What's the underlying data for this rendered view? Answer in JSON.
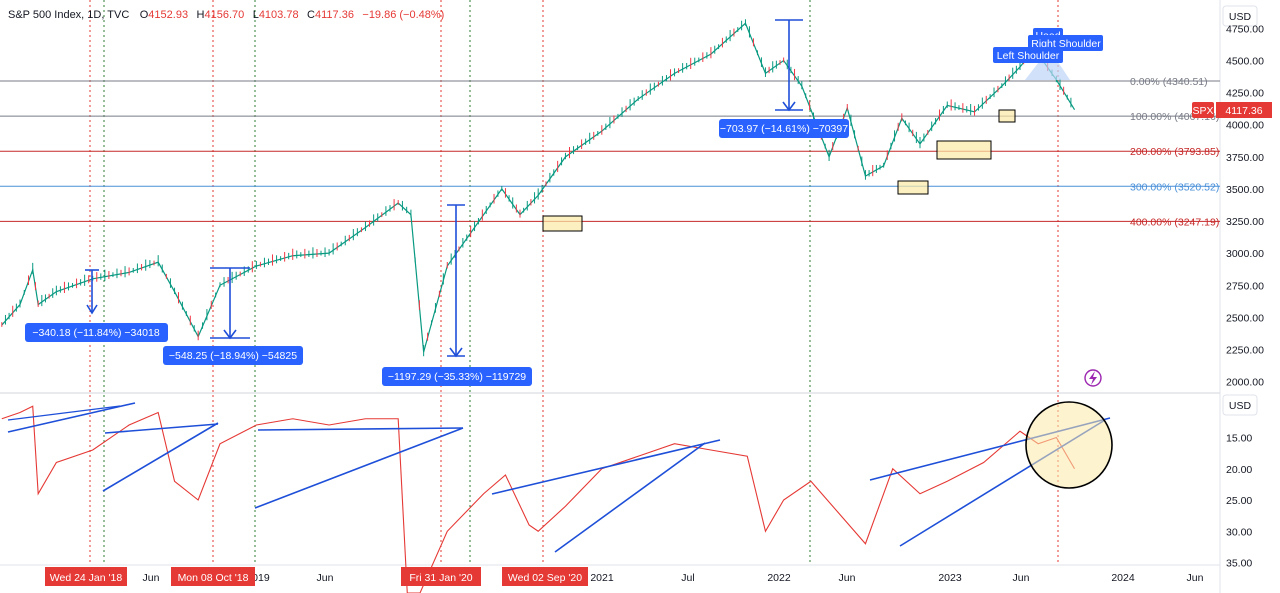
{
  "chart_data": [
    {
      "type": "candlestick",
      "title": "S&P 500 Index, 1D, TVC",
      "ohlc": {
        "o": "O",
        "o_val": "4152.93",
        "h": "H",
        "h_val": "4156.70",
        "l": "L",
        "l_val": "4103.78",
        "c": "C",
        "c_val": "4117.36",
        "chg": "−19.86 (−0.48%)"
      },
      "currency": "USD",
      "y_ticks": [
        "4750.00",
        "4500.00",
        "4250.00",
        "4000.00",
        "3750.00",
        "3500.00",
        "3250.00",
        "3000.00",
        "2750.00",
        "2500.00",
        "2250.00",
        "2000.00"
      ],
      "ylim": [
        1950,
        4800
      ],
      "price_tag": {
        "symbol": "SPX",
        "value": "4117.36"
      },
      "fib_levels": [
        {
          "label": "0.00% (4340.51)",
          "value": 4340.51,
          "color": "#787b86"
        },
        {
          "label": "100.00% (4067.16)",
          "value": 4067.16,
          "color": "#787b86"
        },
        {
          "label": "200.00% (3793.85)",
          "value": 3793.85,
          "color": "#c62828"
        },
        {
          "label": "300.00% (3520.52)",
          "value": 3520.52,
          "color": "#4a90d9"
        },
        {
          "label": "400.00% (3247.19)",
          "value": 3247.19,
          "color": "#c62828"
        }
      ],
      "series": [
        {
          "x": [
            2017.9,
            2018.0,
            2018.07,
            2018.1,
            2018.2,
            2018.4,
            2018.6,
            2018.76,
            2018.85,
            2018.98,
            2019.1,
            2019.3,
            2019.5,
            2019.7,
            2019.9,
            2020.08,
            2020.15,
            2020.22,
            2020.35,
            2020.5,
            2020.65,
            2020.75,
            2020.85,
            2021.0,
            2021.2,
            2021.4,
            2021.6,
            2021.8,
            2021.99,
            2022.1,
            2022.2,
            2022.3,
            2022.45,
            2022.55,
            2022.65,
            2022.75,
            2022.85,
            2022.95,
            2023.1,
            2023.25,
            2023.4,
            2023.5,
            2023.58,
            2023.7,
            2023.8
          ],
          "values": [
            2440,
            2600,
            2870,
            2600,
            2700,
            2800,
            2850,
            2930,
            2700,
            2350,
            2750,
            2900,
            2980,
            3000,
            3200,
            3390,
            3300,
            2230,
            2900,
            3200,
            3500,
            3300,
            3450,
            3750,
            3950,
            4200,
            4400,
            4550,
            4790,
            4400,
            4500,
            4300,
            3750,
            4130,
            3600,
            3680,
            4050,
            3850,
            4150,
            4100,
            4300,
            4450,
            4590,
            4350,
            4117
          ]
        }
      ],
      "measures": [
        {
          "label": "−340.18 (−11.84%) −34018"
        },
        {
          "label": "−548.25 (−18.94%) −54825"
        },
        {
          "label": "−1197.29 (−35.33%) −119729"
        },
        {
          "label": "−703.97 (−14.61%) −70397"
        }
      ],
      "pattern_labels": [
        "Head",
        "Right Shoulder",
        "Left Shoulder"
      ]
    },
    {
      "type": "line",
      "currency": "USD",
      "y_ticks": [
        "15.00",
        "20.00",
        "25.00",
        "30.00",
        "35.00"
      ],
      "y_reversed": true,
      "ylim": [
        9,
        37
      ],
      "series": [
        {
          "x": [
            2017.9,
            2018.0,
            2018.07,
            2018.1,
            2018.2,
            2018.4,
            2018.6,
            2018.76,
            2018.85,
            2018.98,
            2019.1,
            2019.3,
            2019.5,
            2019.7,
            2019.9,
            2020.08,
            2020.13,
            2020.2,
            2020.35,
            2020.55,
            2020.67,
            2020.8,
            2020.85,
            2021.0,
            2021.2,
            2021.4,
            2021.6,
            2021.8,
            2022.0,
            2022.1,
            2022.2,
            2022.35,
            2022.5,
            2022.65,
            2022.8,
            2022.95,
            2023.1,
            2023.3,
            2023.5,
            2023.6,
            2023.7,
            2023.8
          ],
          "values": [
            12,
            11,
            10,
            24,
            19,
            17,
            13,
            11,
            22,
            25,
            16,
            13,
            12,
            13,
            12,
            12,
            40,
            42,
            30,
            24,
            21,
            29,
            30,
            26,
            20,
            18,
            16,
            17,
            18,
            30,
            25,
            22,
            27,
            32,
            20,
            24,
            22,
            19,
            14,
            16,
            15,
            20
          ]
        }
      ]
    }
  ],
  "x_axis": {
    "ticks": [
      "Jun",
      "2019",
      "Jun",
      "2021",
      "Jul",
      "2022",
      "Jun",
      "2023",
      "Jun",
      "2024",
      "Jun"
    ],
    "date_tags": [
      "Wed 24 Jan '18",
      "Mon 08 Oct '18",
      "Fri 31 Jan '20",
      "Wed 02 Sep '20"
    ]
  },
  "icons": {
    "lightning": "lightning-icon"
  }
}
